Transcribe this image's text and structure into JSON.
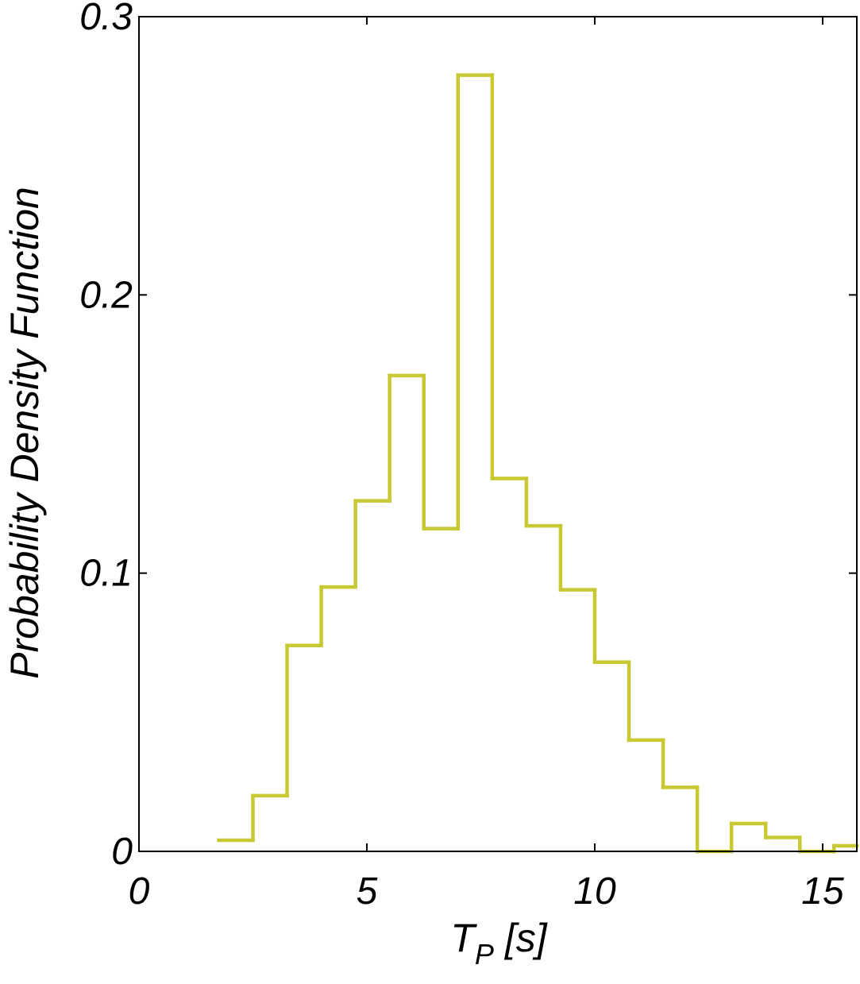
{
  "chart_data": {
    "type": "histogram",
    "title": "",
    "xlabel": {
      "main": "T",
      "subscript": "P",
      "unit": " [s]"
    },
    "ylabel": "Probability Density Function",
    "xlim": [
      0,
      15.75
    ],
    "ylim": [
      0,
      0.3
    ],
    "xticks": [
      0,
      5,
      10,
      15
    ],
    "xtick_labels": [
      "0",
      "5",
      "10",
      "15"
    ],
    "yticks": [
      0,
      0.1,
      0.2,
      0.3
    ],
    "ytick_labels": [
      "0",
      "0.1",
      "0.2",
      "0.3"
    ],
    "grid": false,
    "line_color": "#c8c832",
    "bin_edges": [
      1.75,
      2.5,
      3.25,
      4.0,
      4.75,
      5.5,
      6.25,
      7.0,
      7.75,
      8.5,
      9.25,
      10.0,
      10.75,
      11.5,
      12.25,
      13.0,
      13.75,
      14.5,
      15.25,
      15.75
    ],
    "values": [
      0.004,
      0.02,
      0.074,
      0.095,
      0.126,
      0.171,
      0.116,
      0.279,
      0.134,
      0.117,
      0.094,
      0.068,
      0.04,
      0.023,
      0.0,
      0.01,
      0.005,
      0.0,
      0.002
    ]
  }
}
